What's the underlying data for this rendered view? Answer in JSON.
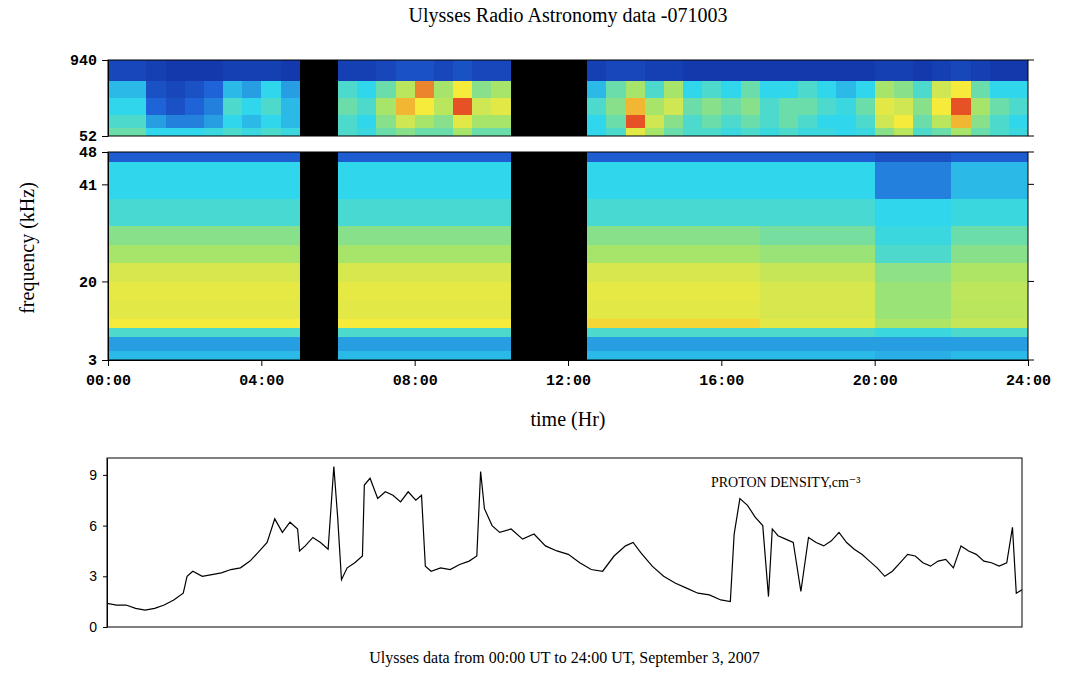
{
  "chart_data": [
    {
      "type": "heatmap",
      "title": "Ulysses Radio Astronomy data -071003",
      "x_edges": [
        0,
        0.5,
        1,
        1.5,
        2,
        2.5,
        3,
        3.5,
        4,
        4.5,
        5,
        5.5,
        6,
        6.5,
        7,
        7.5,
        8,
        8.5,
        9,
        9.5,
        10,
        10.5,
        11,
        11.5,
        12,
        12.5,
        13,
        13.5,
        14,
        14.5,
        15,
        15.5,
        16,
        16.5,
        17,
        17.5,
        18,
        18.5,
        19,
        19.5,
        20,
        20.5,
        21,
        21.5,
        22,
        22.5,
        23,
        23.5,
        24
      ],
      "y_edges": [
        52,
        150,
        300,
        500,
        700,
        940
      ],
      "cells": [
        [
          0.5,
          0.5,
          0.4,
          0.4,
          0.4,
          0.42,
          0.45,
          0.42,
          0.45,
          0.42,
          null,
          null,
          0.45,
          0.42,
          0.5,
          0.55,
          0.5,
          0.5,
          0.6,
          0.5,
          0.5,
          null,
          null,
          null,
          null,
          0.4,
          0.45,
          0.75,
          0.6,
          0.5,
          0.45,
          0.45,
          0.42,
          0.45,
          0.42,
          0.45,
          0.42,
          0.42,
          0.4,
          0.42,
          0.55,
          0.65,
          0.45,
          0.5,
          0.6,
          0.5,
          0.45,
          0.42
        ],
        [
          0.45,
          0.45,
          0.3,
          0.25,
          0.25,
          0.3,
          0.4,
          0.35,
          0.4,
          0.35,
          null,
          null,
          0.45,
          0.4,
          0.55,
          0.7,
          0.6,
          0.55,
          0.75,
          0.6,
          0.6,
          null,
          null,
          null,
          null,
          0.4,
          0.5,
          0.95,
          0.7,
          0.55,
          0.45,
          0.5,
          0.45,
          0.5,
          0.45,
          0.5,
          0.45,
          0.4,
          0.4,
          0.45,
          0.7,
          0.8,
          0.5,
          0.65,
          0.85,
          0.55,
          0.45,
          0.4
        ],
        [
          0.4,
          0.4,
          0.2,
          0.15,
          0.2,
          0.25,
          0.45,
          0.4,
          0.45,
          0.35,
          null,
          null,
          0.5,
          0.45,
          0.6,
          0.85,
          0.8,
          0.65,
          0.95,
          0.7,
          0.75,
          null,
          null,
          null,
          null,
          0.45,
          0.55,
          0.85,
          0.6,
          0.7,
          0.5,
          0.55,
          0.5,
          0.55,
          0.45,
          0.5,
          0.5,
          0.45,
          0.42,
          0.5,
          0.75,
          0.7,
          0.55,
          0.8,
          0.95,
          0.6,
          0.5,
          0.45
        ],
        [
          0.35,
          0.35,
          0.15,
          0.12,
          0.15,
          0.2,
          0.35,
          0.3,
          0.4,
          0.3,
          null,
          null,
          0.45,
          0.4,
          0.5,
          0.65,
          0.9,
          0.6,
          0.8,
          0.55,
          0.6,
          null,
          null,
          null,
          null,
          0.35,
          0.5,
          0.6,
          0.45,
          0.6,
          0.4,
          0.45,
          0.4,
          0.5,
          0.4,
          0.4,
          0.45,
          0.4,
          0.35,
          0.4,
          0.6,
          0.55,
          0.45,
          0.7,
          0.8,
          0.5,
          0.4,
          0.4
        ],
        [
          0.12,
          0.12,
          0.1,
          0.08,
          0.08,
          0.08,
          0.1,
          0.1,
          0.1,
          0.08,
          null,
          null,
          0.1,
          0.1,
          0.12,
          0.15,
          0.15,
          0.12,
          0.15,
          0.12,
          0.12,
          null,
          null,
          null,
          null,
          0.1,
          0.12,
          0.12,
          0.1,
          0.1,
          0.08,
          0.08,
          0.08,
          0.08,
          0.08,
          0.08,
          0.08,
          0.08,
          0.08,
          0.08,
          0.1,
          0.1,
          0.08,
          0.1,
          0.12,
          0.1,
          0.08,
          0.08
        ]
      ],
      "zlim": [
        0,
        1
      ],
      "xlim": [
        0,
        24
      ],
      "ylim": [
        52,
        940
      ],
      "yticks": [
        52,
        940
      ],
      "tick_labels": "y"
    },
    {
      "type": "heatmap",
      "xlabel": "time (Hr)",
      "ylabel": "frequency (kHz)",
      "x_edges": [
        0,
        5,
        6,
        10.5,
        12.5,
        17,
        20,
        22,
        24
      ],
      "y_edges": [
        3,
        5,
        8,
        10,
        12,
        16,
        20,
        24,
        28,
        32,
        38,
        46,
        48
      ],
      "cells": [
        [
          0.35,
          null,
          0.35,
          null,
          0.35,
          0.35,
          0.33,
          0.35
        ],
        [
          0.3,
          null,
          0.3,
          null,
          0.3,
          0.3,
          0.3,
          0.3
        ],
        [
          0.45,
          null,
          0.45,
          null,
          0.45,
          0.45,
          0.42,
          0.45
        ],
        [
          0.8,
          null,
          0.8,
          null,
          0.82,
          0.75,
          0.62,
          0.68
        ],
        [
          0.75,
          null,
          0.75,
          null,
          0.75,
          0.72,
          0.58,
          0.65
        ],
        [
          0.76,
          null,
          0.76,
          null,
          0.76,
          0.72,
          0.58,
          0.66
        ],
        [
          0.72,
          null,
          0.72,
          null,
          0.72,
          0.68,
          0.56,
          0.62
        ],
        [
          0.6,
          null,
          0.6,
          null,
          0.6,
          0.58,
          0.45,
          0.55
        ],
        [
          0.55,
          null,
          0.55,
          null,
          0.55,
          0.52,
          0.42,
          0.5
        ],
        [
          0.44,
          null,
          0.44,
          null,
          0.44,
          0.44,
          0.4,
          0.42
        ],
        [
          0.4,
          null,
          0.4,
          null,
          0.4,
          0.4,
          0.25,
          0.35
        ],
        [
          0.18,
          null,
          0.18,
          null,
          0.18,
          0.18,
          0.15,
          0.18
        ]
      ],
      "zlim": [
        0,
        1
      ],
      "xlim": [
        0,
        24
      ],
      "ylim": [
        3,
        48
      ],
      "xticks": [
        {
          "value": 0,
          "label": "00:00"
        },
        {
          "value": 4,
          "label": "04:00"
        },
        {
          "value": 8,
          "label": "08:00"
        },
        {
          "value": 12,
          "label": "12:00"
        },
        {
          "value": 16,
          "label": "16:00"
        },
        {
          "value": 20,
          "label": "20:00"
        },
        {
          "value": 24,
          "label": "24:00"
        }
      ],
      "yticks": [
        3,
        20,
        41,
        48
      ]
    },
    {
      "type": "line",
      "title": "PROTON DENSITY,cm⁻³",
      "xlabel": "Ulysses data from 00:00 UT to 24:00 UT, September 3, 2007",
      "x": [
        0,
        0.25,
        0.5,
        0.75,
        1,
        1.25,
        1.5,
        1.75,
        2,
        2.1,
        2.25,
        2.5,
        2.75,
        3,
        3.25,
        3.5,
        3.75,
        4,
        4.2,
        4.4,
        4.6,
        4.8,
        5,
        5.05,
        5.2,
        5.4,
        5.6,
        5.8,
        5.95,
        6.05,
        6.15,
        6.3,
        6.5,
        6.7,
        6.75,
        6.9,
        7.1,
        7.3,
        7.5,
        7.7,
        7.9,
        8.1,
        8.25,
        8.35,
        8.5,
        8.75,
        9,
        9.25,
        9.5,
        9.7,
        9.8,
        9.9,
        10.1,
        10.3,
        10.6,
        10.9,
        11.2,
        11.5,
        11.8,
        12.1,
        12.4,
        12.7,
        13,
        13.3,
        13.6,
        13.8,
        14,
        14.3,
        14.6,
        14.9,
        15.2,
        15.5,
        15.8,
        16.1,
        16.35,
        16.45,
        16.6,
        16.8,
        17,
        17.2,
        17.35,
        17.45,
        17.6,
        17.8,
        18,
        18.2,
        18.4,
        18.6,
        18.8,
        19,
        19.2,
        19.4,
        19.6,
        19.8,
        20,
        20.2,
        20.4,
        20.6,
        20.8,
        21,
        21.2,
        21.4,
        21.6,
        21.8,
        22,
        22.2,
        22.4,
        22.6,
        22.8,
        23,
        23.2,
        23.4,
        23.6,
        23.75,
        23.85,
        24
      ],
      "values": [
        1.4,
        1.3,
        1.3,
        1.1,
        1.0,
        1.1,
        1.3,
        1.6,
        2.0,
        3.0,
        3.3,
        3.0,
        3.1,
        3.2,
        3.4,
        3.5,
        3.9,
        4.5,
        5.0,
        6.4,
        5.6,
        6.2,
        5.8,
        4.5,
        4.8,
        5.3,
        5.0,
        4.6,
        9.5,
        6.5,
        2.8,
        3.5,
        3.8,
        4.2,
        8.4,
        8.8,
        7.6,
        8.0,
        7.8,
        7.4,
        8.0,
        7.5,
        7.8,
        3.6,
        3.3,
        3.5,
        3.4,
        3.7,
        3.9,
        4.2,
        9.2,
        7.0,
        6.0,
        5.6,
        5.8,
        5.2,
        5.5,
        4.8,
        4.5,
        4.3,
        3.8,
        3.4,
        3.3,
        4.2,
        4.8,
        5.0,
        4.4,
        3.6,
        3.0,
        2.6,
        2.3,
        2.0,
        1.9,
        1.6,
        1.5,
        5.5,
        7.6,
        7.2,
        6.5,
        6.0,
        1.8,
        5.8,
        5.4,
        5.2,
        5.0,
        2.1,
        5.3,
        5.0,
        4.8,
        5.1,
        5.6,
        5.0,
        4.6,
        4.3,
        3.9,
        3.5,
        3.0,
        3.3,
        3.8,
        4.3,
        4.2,
        3.8,
        3.6,
        3.9,
        4.0,
        3.5,
        4.8,
        4.5,
        4.3,
        3.9,
        3.8,
        3.6,
        3.8,
        5.9,
        2.0,
        2.2
      ],
      "color": "#000000",
      "xlim": [
        0,
        24
      ],
      "ylim": [
        0,
        10
      ],
      "yticks": [
        0,
        3,
        6,
        9
      ],
      "tick_labels": "y"
    }
  ]
}
